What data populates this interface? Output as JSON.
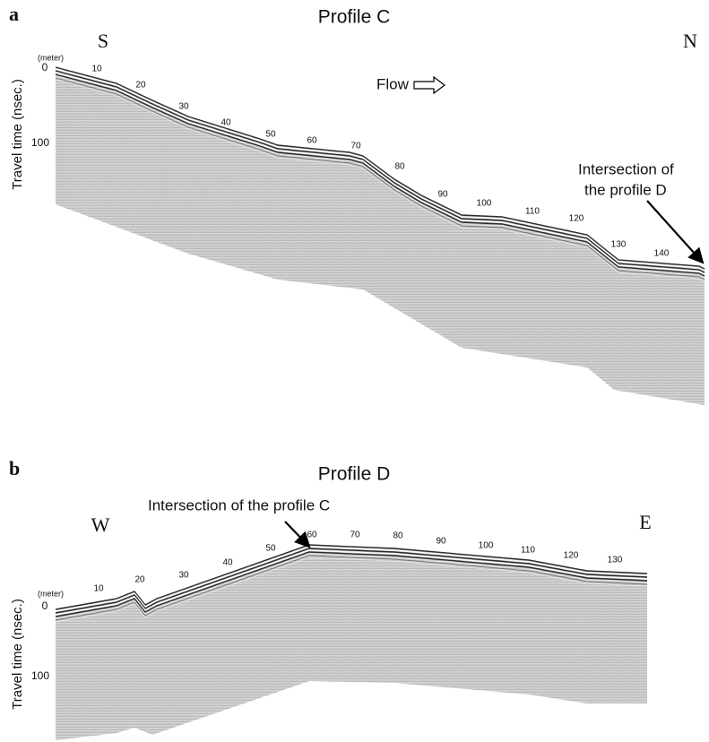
{
  "panels": [
    {
      "label": "a",
      "title": "Profile C",
      "left_direction": "S",
      "right_direction": "N",
      "distance_unit": "(meter)",
      "distance_ticks": [
        10,
        20,
        30,
        40,
        50,
        60,
        70,
        80,
        90,
        100,
        110,
        120,
        130,
        140
      ],
      "time_ticks": [
        0,
        100
      ],
      "y_axis_label": "Travel time (nsec.)",
      "flow_label": "Flow",
      "annotation": [
        "Intersection of",
        "the profile D"
      ]
    },
    {
      "label": "b",
      "title": "Profile D",
      "left_direction": "W",
      "right_direction": "E",
      "distance_unit": "(meter)",
      "distance_ticks": [
        10,
        20,
        30,
        40,
        50,
        60,
        70,
        80,
        90,
        100,
        110,
        120,
        130
      ],
      "time_ticks": [
        0,
        100
      ],
      "y_axis_label": "Travel time (nsec.)",
      "annotation": [
        "Intersection of the profile C"
      ]
    }
  ]
}
